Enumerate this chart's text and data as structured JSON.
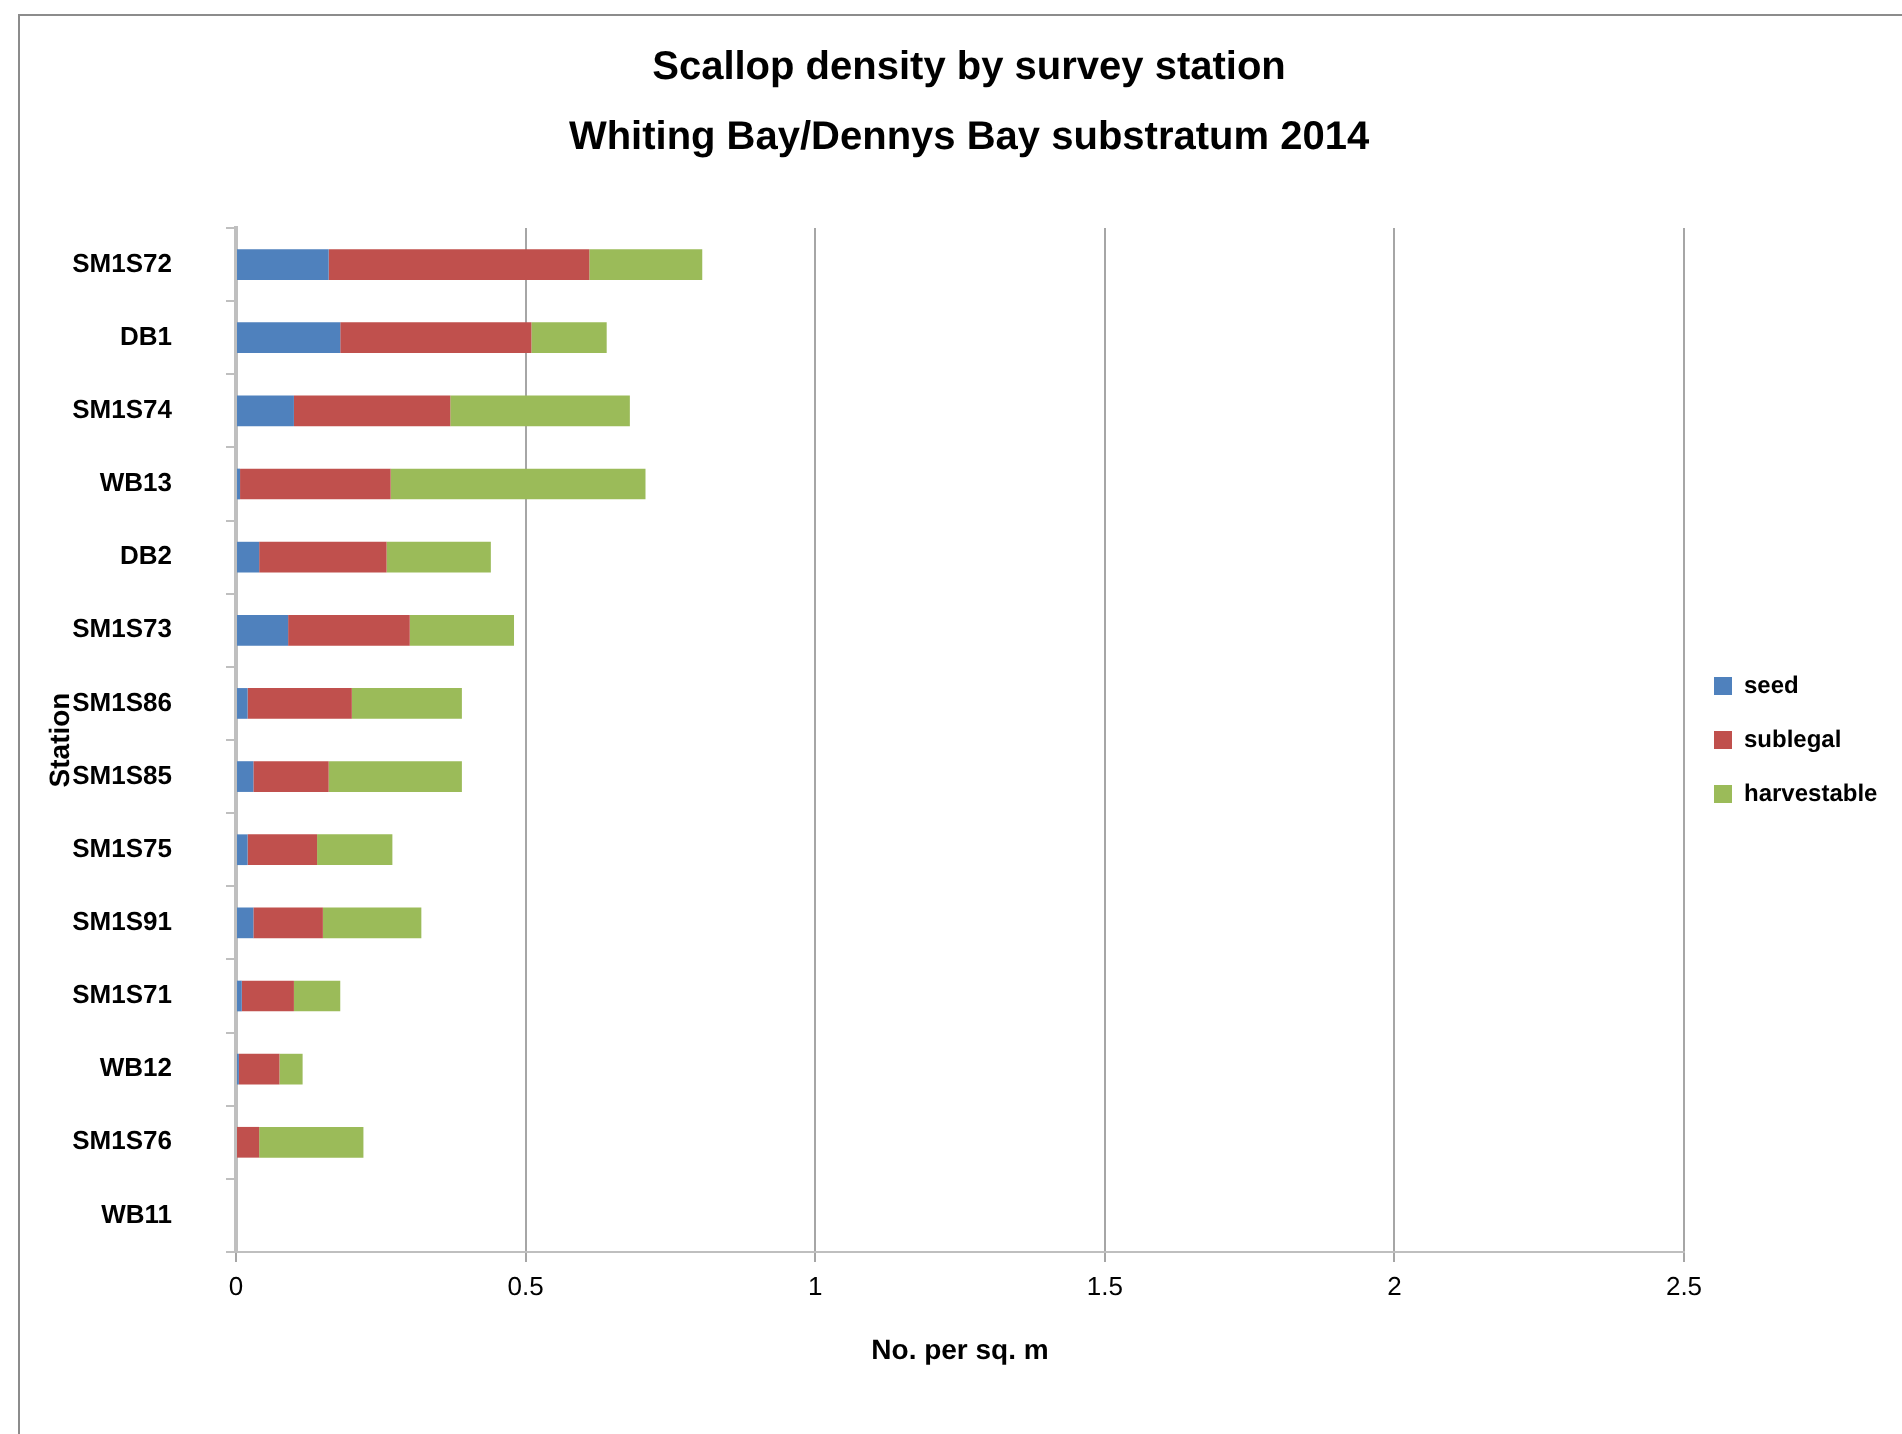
{
  "chart_data": {
    "type": "bar",
    "orientation": "horizontal",
    "stacked": true,
    "title": "Scallop density by survey station",
    "subtitle": "Whiting Bay/Dennys Bay substratum 2014",
    "xlabel": "No. per sq. m",
    "ylabel": "Station",
    "categories": [
      "SM1S72",
      "DB1",
      "SM1S74",
      "WB13",
      "DB2",
      "SM1S73",
      "SM1S86",
      "SM1S85",
      "SM1S75",
      "SM1S91",
      "SM1S71",
      "WB12",
      "SM1S76",
      "WB11"
    ],
    "series": [
      {
        "name": "seed",
        "color": "#4f81bd",
        "values": [
          0.16,
          0.18,
          0.1,
          0.007,
          0.04,
          0.09,
          0.02,
          0.03,
          0.02,
          0.03,
          0.01,
          0.005,
          0,
          0
        ]
      },
      {
        "name": "sublegal",
        "color": "#c0504d",
        "values": [
          0.45,
          0.33,
          0.27,
          0.26,
          0.22,
          0.21,
          0.18,
          0.13,
          0.12,
          0.12,
          0.09,
          0.07,
          0.04,
          0
        ]
      },
      {
        "name": "harvestable",
        "color": "#9bbb59",
        "values": [
          0.195,
          0.13,
          0.31,
          0.44,
          0.18,
          0.18,
          0.19,
          0.23,
          0.13,
          0.17,
          0.08,
          0.04,
          0.18,
          0
        ]
      }
    ],
    "xlim": [
      0,
      2.5
    ],
    "xticks": [
      0,
      0.5,
      1,
      1.5,
      2,
      2.5
    ],
    "grid": "x",
    "legend": "right"
  }
}
